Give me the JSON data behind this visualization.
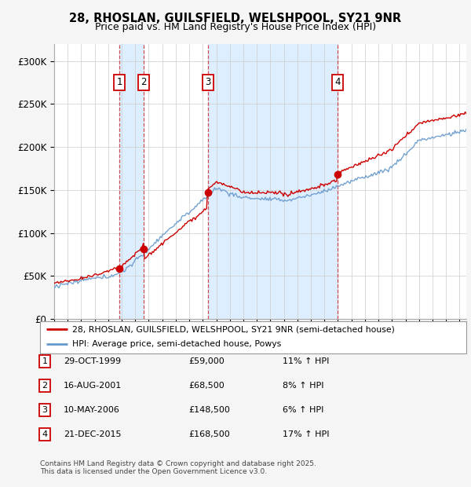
{
  "title_line1": "28, RHOSLAN, GUILSFIELD, WELSHPOOL, SY21 9NR",
  "title_line2": "Price paid vs. HM Land Registry's House Price Index (HPI)",
  "ylim": [
    0,
    320000
  ],
  "yticks": [
    0,
    50000,
    100000,
    150000,
    200000,
    250000,
    300000
  ],
  "ytick_labels": [
    "£0",
    "£50K",
    "£100K",
    "£150K",
    "£200K",
    "£250K",
    "£300K"
  ],
  "sale_color": "#cc0000",
  "hpi_color": "#6699cc",
  "shade_color": "#ddeeff",
  "grid_color": "#cccccc",
  "sales": [
    {
      "date_num": 1999.83,
      "price": 59000,
      "label": "1"
    },
    {
      "date_num": 2001.62,
      "price": 68500,
      "label": "2"
    },
    {
      "date_num": 2006.36,
      "price": 148500,
      "label": "3"
    },
    {
      "date_num": 2015.97,
      "price": 168500,
      "label": "4"
    }
  ],
  "legend_sale_label": "28, RHOSLAN, GUILSFIELD, WELSHPOOL, SY21 9NR (semi-detached house)",
  "legend_hpi_label": "HPI: Average price, semi-detached house, Powys",
  "table_rows": [
    {
      "num": "1",
      "date": "29-OCT-1999",
      "price": "£59,000",
      "hpi": "11% ↑ HPI"
    },
    {
      "num": "2",
      "date": "16-AUG-2001",
      "price": "£68,500",
      "hpi": "8% ↑ HPI"
    },
    {
      "num": "3",
      "date": "10-MAY-2006",
      "price": "£148,500",
      "hpi": "6% ↑ HPI"
    },
    {
      "num": "4",
      "date": "21-DEC-2015",
      "price": "£168,500",
      "hpi": "17% ↑ HPI"
    }
  ],
  "footnote": "Contains HM Land Registry data © Crown copyright and database right 2025.\nThis data is licensed under the Open Government Licence v3.0.",
  "xmin": 1995.0,
  "xmax": 2025.5
}
